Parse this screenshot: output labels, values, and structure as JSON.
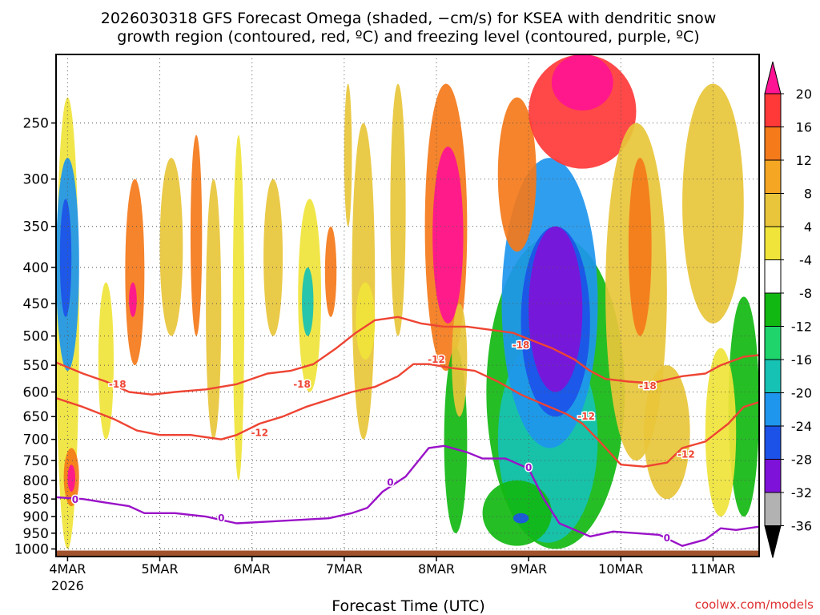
{
  "chart_data": {
    "type": "heatmap",
    "title_line1": "2026030318 GFS Forecast Omega (shaded, −cm/s) for KSEA with dendritic snow",
    "title_line2": "growth region (contoured, red, ºC) and freezing level (contoured, purple, ºC)",
    "xlabel": "Forecast Time (UTC)",
    "ylabel": "",
    "credit": "coolwx.com/models",
    "x_axis": {
      "unit": "hours since 2026-03-04 00 UTC",
      "range": [
        -3,
        180
      ],
      "ticks": [
        {
          "hour": 0,
          "label": "4MAR"
        },
        {
          "hour": 24,
          "label": "5MAR"
        },
        {
          "hour": 48,
          "label": "6MAR"
        },
        {
          "hour": 72,
          "label": "7MAR"
        },
        {
          "hour": 96,
          "label": "8MAR"
        },
        {
          "hour": 120,
          "label": "9MAR"
        },
        {
          "hour": 144,
          "label": "10MAR"
        },
        {
          "hour": 168,
          "label": "11MAR"
        }
      ],
      "year_label": "2026"
    },
    "y_axis": {
      "unit": "hPa",
      "scale": "log-pressure",
      "range": [
        1025,
        200
      ],
      "ticks": [
        250,
        300,
        350,
        400,
        450,
        500,
        550,
        600,
        650,
        700,
        750,
        800,
        850,
        900,
        950,
        1000
      ],
      "grid": "dotted"
    },
    "colorbar": {
      "label_values": [
        20,
        16,
        12,
        8,
        4,
        -4,
        -8,
        -12,
        -16,
        -20,
        -24,
        -28,
        -32,
        -36
      ],
      "colors": [
        "#ff1493",
        "#ff3838",
        "#f47a1a",
        "#f5a623",
        "#e8c53a",
        "#f0e43a",
        "#ffffff",
        "#12b812",
        "#1ed46b",
        "#16c2b4",
        "#1e96ee",
        "#1c52e8",
        "#7e12d8",
        "#b2b2b2",
        "#000000"
      ]
    },
    "terrain_color": "#a0522d",
    "omega_blobs": [
      {
        "t0": -3,
        "t1": 3,
        "p0": 230,
        "p1": 1000,
        "class": 0.2
      },
      {
        "t0": -3,
        "t1": 3,
        "p0": 280,
        "p1": 560,
        "class": -3
      },
      {
        "t0": -2,
        "t1": 1,
        "p0": 320,
        "p1": 470,
        "class": -4
      },
      {
        "t0": -1,
        "t1": 3,
        "p0": 720,
        "p1": 870,
        "class": 2
      },
      {
        "t0": 0,
        "t1": 2,
        "p0": 760,
        "p1": 830,
        "class": 4
      },
      {
        "t0": 8,
        "t1": 12,
        "p0": 420,
        "p1": 700,
        "class": 0.3
      },
      {
        "t0": 15,
        "t1": 20,
        "p0": 300,
        "p1": 550,
        "class": 2
      },
      {
        "t0": 16,
        "t1": 18,
        "p0": 420,
        "p1": 470,
        "class": 4
      },
      {
        "t0": 24,
        "t1": 30,
        "p0": 280,
        "p1": 500,
        "class": 1
      },
      {
        "t0": 32,
        "t1": 35,
        "p0": 260,
        "p1": 500,
        "class": 2
      },
      {
        "t0": 36,
        "t1": 40,
        "p0": 300,
        "p1": 700,
        "class": 1
      },
      {
        "t0": 43,
        "t1": 46,
        "p0": 260,
        "p1": 800,
        "class": 0.3
      },
      {
        "t0": 51,
        "t1": 56,
        "p0": 300,
        "p1": 500,
        "class": 1
      },
      {
        "t0": 60,
        "t1": 66,
        "p0": 320,
        "p1": 600,
        "class": 0.3
      },
      {
        "t0": 61,
        "t1": 64,
        "p0": 400,
        "p1": 500,
        "class": -2
      },
      {
        "t0": 67,
        "t1": 70,
        "p0": 350,
        "p1": 470,
        "class": 2
      },
      {
        "t0": 72,
        "t1": 74,
        "p0": 220,
        "p1": 350,
        "class": 1
      },
      {
        "t0": 74,
        "t1": 80,
        "p0": 250,
        "p1": 700,
        "class": 1
      },
      {
        "t0": 84,
        "t1": 88,
        "p0": 220,
        "p1": 500,
        "class": 1
      },
      {
        "t0": 93,
        "t1": 104,
        "p0": 220,
        "p1": 560,
        "class": 2
      },
      {
        "t0": 95,
        "t1": 103,
        "p0": 270,
        "p1": 480,
        "class": 4
      },
      {
        "t0": 98,
        "t1": 104,
        "p0": 520,
        "p1": 950,
        "class": -1
      },
      {
        "t0": 100,
        "t1": 104,
        "p0": 450,
        "p1": 650,
        "class": 1
      },
      {
        "t0": 109,
        "t1": 145,
        "p0": 360,
        "p1": 1000,
        "class": -1
      },
      {
        "t0": 112,
        "t1": 138,
        "p0": 500,
        "p1": 980,
        "class": -2
      },
      {
        "t0": 113,
        "t1": 138,
        "p0": 280,
        "p1": 720,
        "class": -3
      },
      {
        "t0": 118,
        "t1": 136,
        "p0": 350,
        "p1": 650,
        "class": -4
      },
      {
        "t0": 120,
        "t1": 134,
        "p0": 350,
        "p1": 600,
        "class": -6
      },
      {
        "t0": 112,
        "t1": 122,
        "p0": 230,
        "p1": 380,
        "class": 2
      },
      {
        "t0": 120,
        "t1": 148,
        "p0": 200,
        "p1": 290,
        "class": 3
      },
      {
        "t0": 126,
        "t1": 142,
        "p0": 200,
        "p1": 240,
        "class": 4
      },
      {
        "t0": 140,
        "t1": 156,
        "p0": 250,
        "p1": 750,
        "class": 1
      },
      {
        "t0": 146,
        "t1": 152,
        "p0": 280,
        "p1": 500,
        "class": 2
      },
      {
        "t0": 160,
        "t1": 176,
        "p0": 220,
        "p1": 480,
        "class": 1
      },
      {
        "t0": 172,
        "t1": 180,
        "p0": 440,
        "p1": 900,
        "class": -1
      },
      {
        "t0": 166,
        "t1": 174,
        "p0": 520,
        "p1": 900,
        "class": 0.3
      },
      {
        "t0": 150,
        "t1": 162,
        "p0": 550,
        "p1": 850,
        "class": 1
      },
      {
        "t0": 108,
        "t1": 126,
        "p0": 800,
        "p1": 990,
        "class": -1
      },
      {
        "t0": 75,
        "t1": 80,
        "p0": 420,
        "p1": 540,
        "class": 0.3
      },
      {
        "t0": 116,
        "t1": 120,
        "p0": 890,
        "p1": 920,
        "class": -4
      }
    ],
    "series": [
      {
        "name": "-18",
        "color": "#ee4433",
        "points": [
          [
            -3,
            545
          ],
          [
            4,
            565
          ],
          [
            10,
            580
          ],
          [
            16,
            600
          ],
          [
            22,
            605
          ],
          [
            28,
            600
          ],
          [
            36,
            595
          ],
          [
            44,
            585
          ],
          [
            52,
            565
          ],
          [
            58,
            560
          ],
          [
            64,
            548
          ],
          [
            70,
            520
          ],
          [
            75,
            495
          ],
          [
            80,
            475
          ],
          [
            86,
            470
          ],
          [
            92,
            480
          ],
          [
            98,
            485
          ],
          [
            104,
            485
          ],
          [
            110,
            490
          ],
          [
            116,
            495
          ],
          [
            120,
            505
          ],
          [
            126,
            520
          ],
          [
            132,
            540
          ],
          [
            136,
            560
          ],
          [
            140,
            575
          ],
          [
            146,
            580
          ],
          [
            152,
            583
          ],
          [
            160,
            570
          ],
          [
            166,
            565
          ],
          [
            170,
            550
          ],
          [
            176,
            535
          ],
          [
            180,
            532
          ]
        ],
        "labels": [
          {
            "t": 13,
            "p": 585,
            "text": "-18"
          },
          {
            "t": 61,
            "p": 585,
            "text": "-18"
          },
          {
            "t": 118,
            "p": 515,
            "text": "-18"
          },
          {
            "t": 151,
            "p": 588,
            "text": "-18"
          }
        ]
      },
      {
        "name": "-12",
        "color": "#ee4433",
        "points": [
          [
            -3,
            612
          ],
          [
            4,
            630
          ],
          [
            12,
            655
          ],
          [
            18,
            680
          ],
          [
            24,
            690
          ],
          [
            32,
            690
          ],
          [
            40,
            700
          ],
          [
            44,
            690
          ],
          [
            50,
            665
          ],
          [
            56,
            650
          ],
          [
            62,
            630
          ],
          [
            68,
            615
          ],
          [
            74,
            600
          ],
          [
            80,
            590
          ],
          [
            86,
            570
          ],
          [
            90,
            548
          ],
          [
            94,
            548
          ],
          [
            100,
            555
          ],
          [
            106,
            560
          ],
          [
            112,
            580
          ],
          [
            118,
            605
          ],
          [
            124,
            625
          ],
          [
            130,
            645
          ],
          [
            134,
            665
          ],
          [
            138,
            700
          ],
          [
            144,
            760
          ],
          [
            150,
            765
          ],
          [
            156,
            755
          ],
          [
            160,
            720
          ],
          [
            166,
            705
          ],
          [
            172,
            665
          ],
          [
            176,
            630
          ],
          [
            180,
            620
          ]
        ],
        "labels": [
          {
            "t": 50,
            "p": 685,
            "text": "-12"
          },
          {
            "t": 96,
            "p": 540,
            "text": "-12"
          },
          {
            "t": 135,
            "p": 650,
            "text": "-12"
          },
          {
            "t": 161,
            "p": 735,
            "text": "-12"
          }
        ]
      },
      {
        "name": "0",
        "color": "#9a12c8",
        "points": [
          [
            -3,
            845
          ],
          [
            4,
            850
          ],
          [
            10,
            860
          ],
          [
            16,
            870
          ],
          [
            20,
            890
          ],
          [
            28,
            890
          ],
          [
            36,
            900
          ],
          [
            44,
            920
          ],
          [
            52,
            915
          ],
          [
            60,
            910
          ],
          [
            68,
            905
          ],
          [
            74,
            890
          ],
          [
            78,
            875
          ],
          [
            82,
            830
          ],
          [
            88,
            790
          ],
          [
            94,
            720
          ],
          [
            98,
            715
          ],
          [
            104,
            730
          ],
          [
            108,
            745
          ],
          [
            114,
            745
          ],
          [
            120,
            770
          ],
          [
            124,
            850
          ],
          [
            128,
            920
          ],
          [
            136,
            960
          ],
          [
            142,
            945
          ],
          [
            148,
            950
          ],
          [
            154,
            955
          ],
          [
            160,
            990
          ],
          [
            166,
            970
          ],
          [
            170,
            935
          ],
          [
            174,
            940
          ],
          [
            180,
            930
          ]
        ],
        "labels": [
          {
            "t": 2,
            "p": 852,
            "text": "0"
          },
          {
            "t": 40,
            "p": 905,
            "text": "0"
          },
          {
            "t": 84,
            "p": 805,
            "text": "0"
          },
          {
            "t": 120,
            "p": 768,
            "text": "0"
          },
          {
            "t": 156,
            "p": 965,
            "text": "0"
          }
        ]
      }
    ]
  }
}
